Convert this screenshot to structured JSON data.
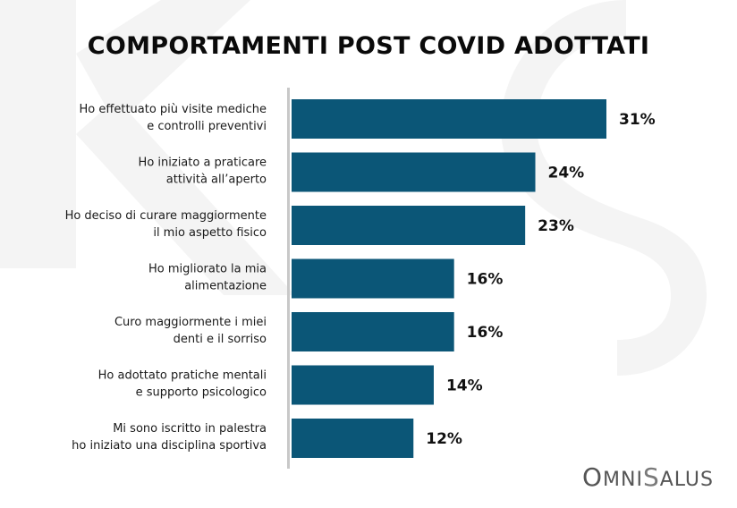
{
  "chart_data": {
    "type": "bar",
    "orientation": "horizontal",
    "title": "COMPORTAMENTI POST COVID ADOTTATI",
    "categories": [
      [
        "Ho effettuato più visite mediche",
        "e controlli preventivi"
      ],
      [
        "Ho iniziato a praticare",
        "attività all’aperto"
      ],
      [
        "Ho deciso di curare maggiormente",
        "il mio aspetto fisico"
      ],
      [
        "Ho migliorato la mia",
        "alimentazione"
      ],
      [
        "Curo maggiormente i miei",
        "denti e il sorriso"
      ],
      [
        "Ho adottato pratiche mentali",
        "e supporto psicologico"
      ],
      [
        "Mi sono iscritto in palestra",
        "ho iniziato una disciplina sportiva"
      ]
    ],
    "values": [
      31,
      24,
      23,
      16,
      16,
      14,
      12
    ],
    "value_labels": [
      "31%",
      "24%",
      "23%",
      "16%",
      "16%",
      "14%",
      "12%"
    ],
    "unit": "%",
    "bar_color": "#0b5677",
    "axis_color": "#c8c8c8",
    "grid": false,
    "legend": "none"
  },
  "brand": {
    "logo_text": "OMNISALUS"
  }
}
